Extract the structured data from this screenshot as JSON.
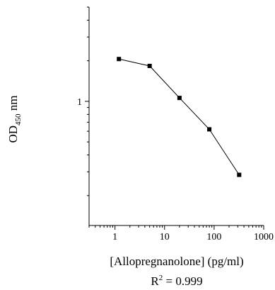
{
  "chart_data": {
    "type": "line",
    "title": "",
    "xlabel": "[Allopregnanolone] (pg/ml)",
    "ylabel": {
      "base": "OD",
      "subscript": "450",
      "unit": " nm"
    },
    "x_scale": "log",
    "y_scale": "log",
    "xlim": [
      0.3,
      1000
    ],
    "ylim": [
      0.12,
      5.0
    ],
    "x_ticks": [
      1,
      10,
      100,
      1000
    ],
    "x_tick_labels": [
      "1",
      "10",
      "100",
      "1000"
    ],
    "y_ticks": [
      1
    ],
    "y_tick_labels": [
      "1"
    ],
    "grid": false,
    "series": [
      {
        "x": [
          1.2,
          5,
          20,
          80,
          320
        ],
        "y": [
          2.06,
          1.83,
          1.06,
          0.62,
          0.285
        ]
      }
    ],
    "annotation": {
      "base": "R",
      "superscript": "2",
      "rest": " = 0.999"
    },
    "colors": {
      "line": "#000000",
      "marker": "#000000",
      "axis": "#000000"
    }
  }
}
